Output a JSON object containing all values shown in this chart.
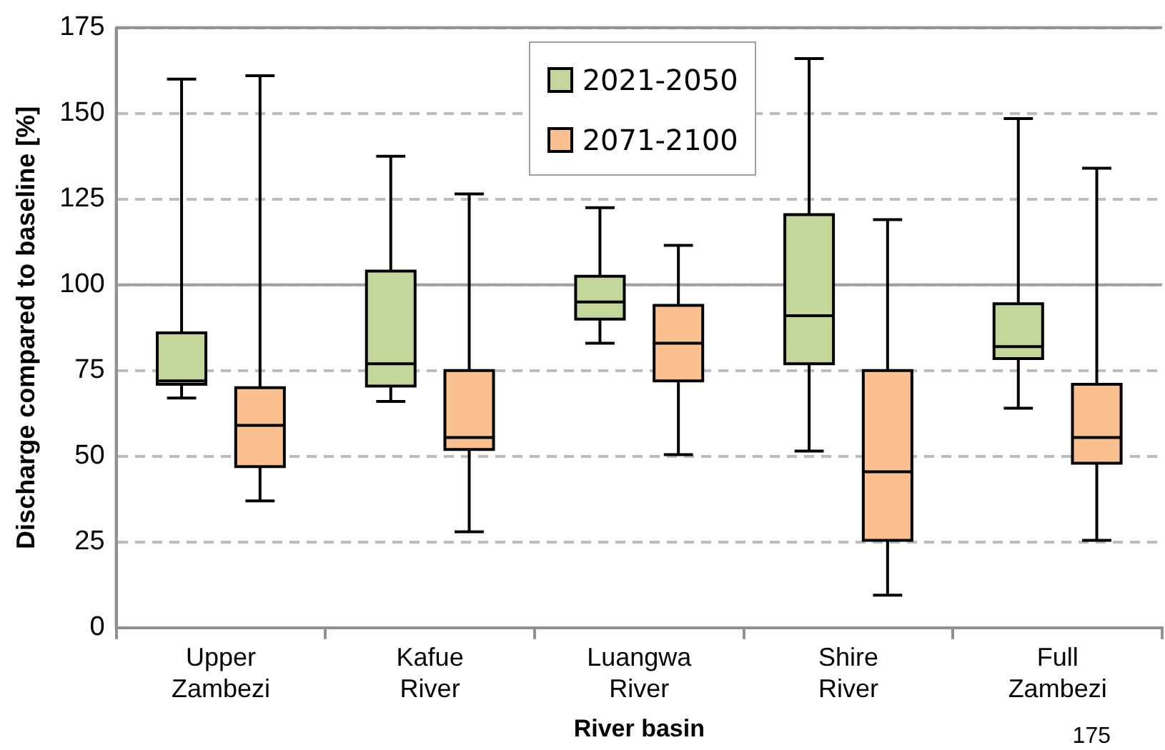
{
  "chart_data": {
    "type": "box",
    "xlabel": "River basin",
    "ylabel": "Discharge compared to baseline [%]",
    "categories": [
      "Upper Zambezi",
      "Kafue River",
      "Luangwa River",
      "Shire River",
      "Full Zambezi"
    ],
    "series": [
      {
        "name": "2021-2050",
        "color": "#c4d79b",
        "boxes": [
          {
            "low": 67,
            "q1": 71,
            "median": 72,
            "q3": 86,
            "high": 160
          },
          {
            "low": 66,
            "q1": 70.5,
            "median": 77,
            "q3": 104,
            "high": 137.5
          },
          {
            "low": 83,
            "q1": 90,
            "median": 95,
            "q3": 102.5,
            "high": 122.5
          },
          {
            "low": 51.5,
            "q1": 77,
            "median": 91,
            "q3": 120.5,
            "high": 166
          },
          {
            "low": 64,
            "q1": 78.5,
            "median": 82,
            "q3": 94.5,
            "high": 148.5
          }
        ]
      },
      {
        "name": "2071-2100",
        "color": "#fac090",
        "boxes": [
          {
            "low": 37,
            "q1": 47,
            "median": 59,
            "q3": 70,
            "high": 161
          },
          {
            "low": 28,
            "q1": 52,
            "median": 55.5,
            "q3": 75,
            "high": 126.5
          },
          {
            "low": 50.5,
            "q1": 72,
            "median": 83,
            "q3": 94,
            "high": 111.5
          },
          {
            "low": 9.5,
            "q1": 25.5,
            "median": 45.5,
            "q3": 75,
            "high": 119
          },
          {
            "low": 25.5,
            "q1": 48,
            "median": 55.5,
            "q3": 71,
            "high": 134
          }
        ]
      }
    ],
    "ylim": [
      0,
      175
    ],
    "yticks": [
      0,
      25,
      50,
      75,
      100,
      125,
      150,
      175
    ],
    "grid": "y",
    "legend": "top right",
    "ref_lines": [
      {
        "axis": "y",
        "value": 100,
        "color": "#a0a0a0"
      }
    ],
    "annotations": [
      "175"
    ]
  }
}
